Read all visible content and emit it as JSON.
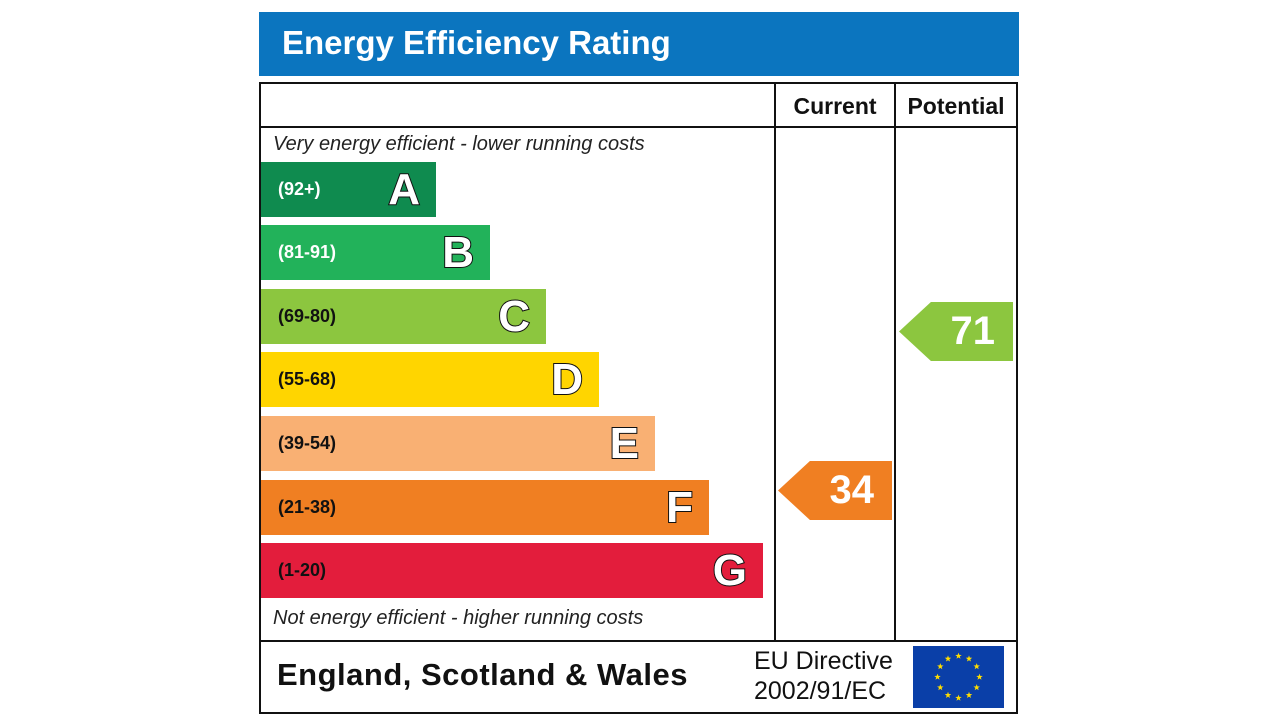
{
  "header": {
    "title": "Energy Efficiency Rating"
  },
  "columns": {
    "current": "Current",
    "potential": "Potential"
  },
  "captions": {
    "top": "Very energy efficient - lower running costs",
    "bottom": "Not energy efficient - higher running costs"
  },
  "bands": [
    {
      "range": "(92+)",
      "letter": "A",
      "color": "#0f8b4f",
      "range_color": "#ffffff"
    },
    {
      "range": "(81-91)",
      "letter": "B",
      "color": "#22b25a",
      "range_color": "#ffffff"
    },
    {
      "range": "(69-80)",
      "letter": "C",
      "color": "#8cc63f",
      "range_color": "#111111"
    },
    {
      "range": "(55-68)",
      "letter": "D",
      "color": "#ffd500",
      "range_color": "#111111"
    },
    {
      "range": "(39-54)",
      "letter": "E",
      "color": "#f9b073",
      "range_color": "#111111"
    },
    {
      "range": "(21-38)",
      "letter": "F",
      "color": "#f07f22",
      "range_color": "#111111"
    },
    {
      "range": "(1-20)",
      "letter": "G",
      "color": "#e31d3c",
      "range_color": "#111111"
    }
  ],
  "current": {
    "value": "34",
    "band": "F",
    "color": "#f07f22"
  },
  "potential": {
    "value": "71",
    "band": "C",
    "color": "#8cc63f"
  },
  "footer": {
    "region": "England, Scotland & Wales",
    "directive_line1": "EU Directive",
    "directive_line2": "2002/91/EC"
  },
  "colors": {
    "title_bar": "#0b75bf",
    "eu_flag": "#0a3fa8",
    "eu_stars": "#ffdd00"
  },
  "icons": {
    "eu_flag": "eu-flag-icon"
  }
}
